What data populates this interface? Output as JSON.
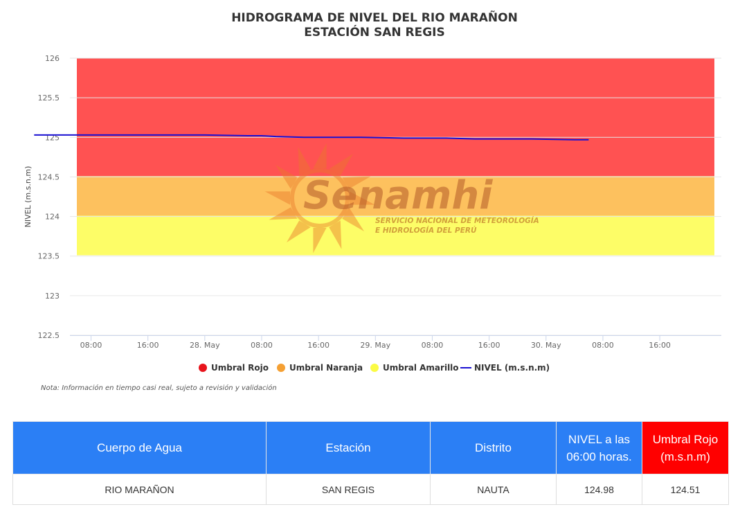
{
  "chart_data": {
    "type": "line",
    "title": "HIDROGRAMA DE NIVEL DEL RIO MARAÑON",
    "subtitle": "ESTACIÓN SAN REGIS",
    "ylabel": "NIVEL (m.s.n.m)",
    "xlabel": "",
    "ylim": [
      122.5,
      126
    ],
    "yticks": [
      "126",
      "125.5",
      "125",
      "124.5",
      "124",
      "123.5",
      "123",
      "122.5"
    ],
    "xlim_hours": [
      0,
      91
    ],
    "xticks": [
      {
        "label": "08:00",
        "hour": 8
      },
      {
        "label": "16:00",
        "hour": 16
      },
      {
        "label": "28. May",
        "hour": 24
      },
      {
        "label": "08:00",
        "hour": 32
      },
      {
        "label": "16:00",
        "hour": 40
      },
      {
        "label": "29. May",
        "hour": 48
      },
      {
        "label": "08:00",
        "hour": 56
      },
      {
        "label": "16:00",
        "hour": 64
      },
      {
        "label": "30. May",
        "hour": 72
      },
      {
        "label": "08:00",
        "hour": 80
      },
      {
        "label": "16:00",
        "hour": 88
      }
    ],
    "grid": true,
    "legend_position": "bottom",
    "thresholds": [
      {
        "name": "Umbral Rojo",
        "from": 124.51,
        "to": 126,
        "color": "#ff5252"
      },
      {
        "name": "Umbral Naranja",
        "from": 124.01,
        "to": 124.51,
        "color": "#fdc15e"
      },
      {
        "name": "Umbral Amarillo",
        "from": 123.51,
        "to": 124.01,
        "color": "#fdfd67"
      }
    ],
    "series": [
      {
        "name": "NIVEL (m.s.n.m)",
        "color": "#1a10d2",
        "points": [
          [
            0,
            125.03
          ],
          [
            10,
            125.03
          ],
          [
            18,
            125.03
          ],
          [
            24,
            125.03
          ],
          [
            30,
            125.02
          ],
          [
            32,
            125.02
          ],
          [
            34,
            125.01
          ],
          [
            38,
            125.0
          ],
          [
            46,
            125.0
          ],
          [
            52,
            124.99
          ],
          [
            58,
            124.99
          ],
          [
            62,
            124.98
          ],
          [
            70,
            124.98
          ],
          [
            76,
            124.97
          ],
          [
            78,
            124.97
          ]
        ]
      }
    ],
    "legend": [
      {
        "label": "Umbral Rojo",
        "color": "#e8141c",
        "kind": "dot"
      },
      {
        "label": "Umbral Naranja",
        "color": "#f5a033",
        "kind": "dot"
      },
      {
        "label": "Umbral Amarillo",
        "color": "#fbfb44",
        "kind": "dot"
      },
      {
        "label": "NIVEL (m.s.n.m)",
        "color": "#1a10d2",
        "kind": "line"
      }
    ]
  },
  "watermark": {
    "name": "Senamhi",
    "line1": "SERVICIO NACIONAL DE METEOROLOGÍA",
    "line2": "E HIDROLOGÍA DEL PERÚ"
  },
  "note": "Nota: Información en tiempo casi real, sujeto a revisión y validación",
  "table": {
    "headers": [
      {
        "label": "Cuerpo de Agua"
      },
      {
        "label": "Estación"
      },
      {
        "label": "Distrito"
      },
      {
        "label": "NIVEL a las 06:00 horas."
      },
      {
        "label": "Umbral Rojo (m.s.n.m)"
      }
    ],
    "row": [
      "RIO MARAÑON",
      "SAN REGIS",
      "NAUTA",
      "124.98",
      "124.51"
    ],
    "header_color": "#2b7ff5",
    "red_header_color": "#ff0000"
  }
}
